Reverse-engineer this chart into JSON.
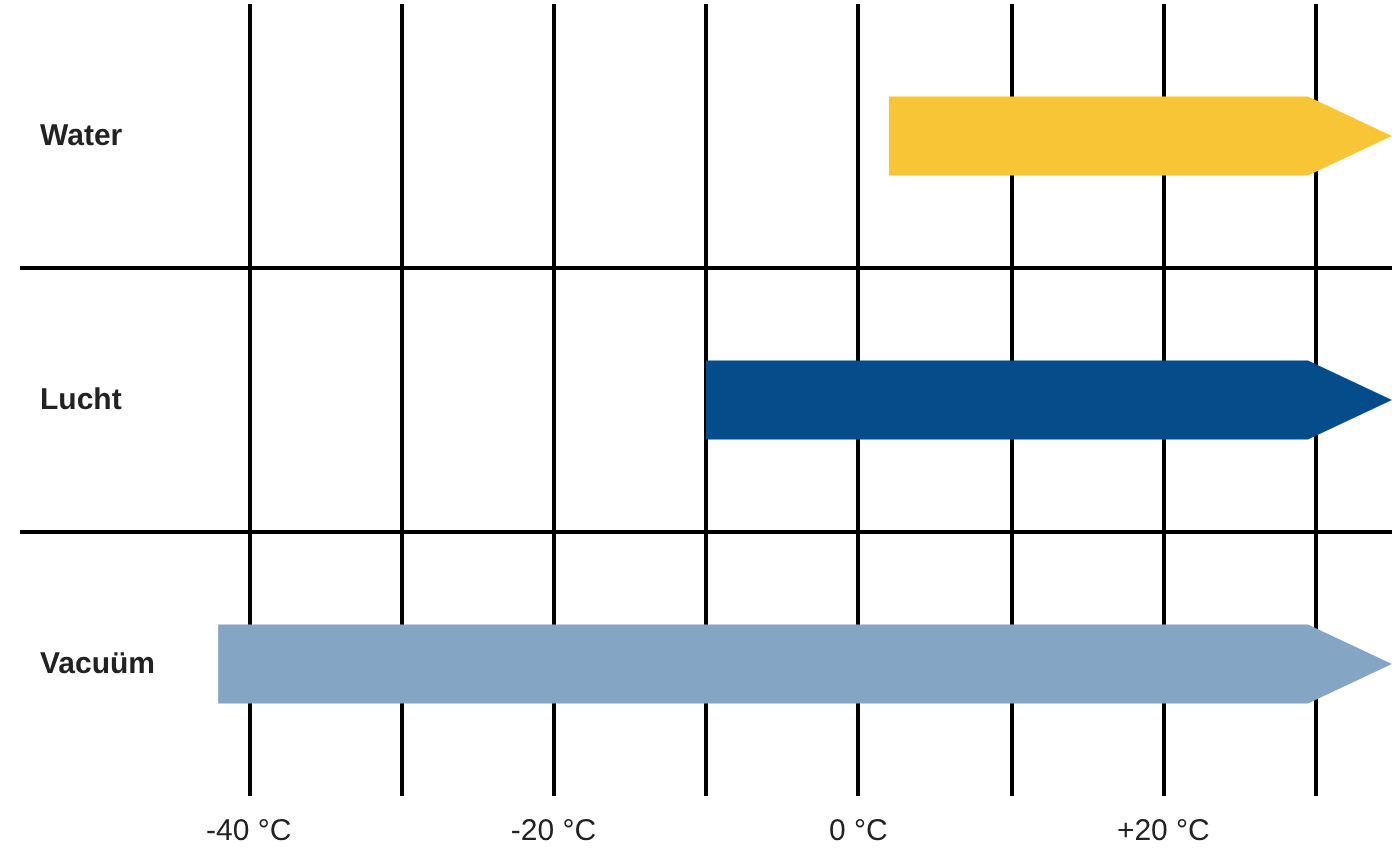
{
  "chart_data": {
    "type": "bar",
    "orientation": "horizontal",
    "categories": [
      "Water",
      "Lucht",
      "Vacuüm"
    ],
    "base": [
      2,
      -10,
      -42
    ],
    "values": [
      33,
      45,
      77
    ],
    "colors": [
      "#f8c537",
      "#054d8a",
      "#84a5c4"
    ],
    "xlim": [
      -55,
      35
    ],
    "xticks": [
      {
        "value": -40,
        "label": "-40 °C"
      },
      {
        "value": -30,
        "label": null
      },
      {
        "value": -20,
        "label": "-20 °C"
      },
      {
        "value": -10,
        "label": null
      },
      {
        "value": 0,
        "label": "0 °C"
      },
      {
        "value": 10,
        "label": null
      },
      {
        "value": 20,
        "label": "+20 °C"
      },
      {
        "value": 30,
        "label": null
      }
    ],
    "grid": true
  }
}
